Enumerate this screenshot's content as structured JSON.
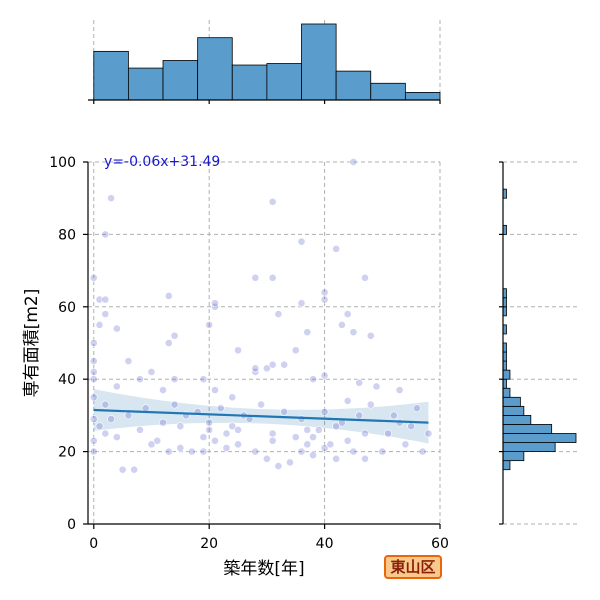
{
  "chart_data": {
    "type": "scatter",
    "xlabel": "築年数[年]",
    "ylabel": "専有面積[m2]",
    "xlim": [
      -1,
      60
    ],
    "ylim": [
      0,
      100
    ],
    "xticks": [
      0,
      20,
      40,
      60
    ],
    "yticks": [
      0,
      20,
      40,
      60,
      80,
      100
    ],
    "regression": {
      "label": "y=-0.06x+31.49",
      "slope": -0.06,
      "intercept": 31.49,
      "color": "#1f77b4"
    },
    "grid": true,
    "point_color": "#6a6fd0",
    "bar_color": "#5a9ccc",
    "x_hist": {
      "bins": [
        0,
        6,
        12,
        18,
        24,
        30,
        36,
        42,
        48,
        54,
        60
      ],
      "counts": [
        32,
        21,
        26,
        41,
        23,
        24,
        50,
        19,
        11,
        5
      ]
    },
    "y_hist": {
      "bins": [
        0,
        2.5,
        5,
        7.5,
        10,
        12.5,
        15,
        17.5,
        20,
        22.5,
        25,
        27.5,
        30,
        32.5,
        35,
        37.5,
        40,
        42.5,
        45,
        47.5,
        50,
        52.5,
        55,
        57.5,
        60,
        62.5,
        65,
        67.5,
        70,
        72.5,
        75,
        77.5,
        80,
        82.5,
        85,
        87.5,
        90,
        92.5,
        95,
        97.5,
        100
      ],
      "counts": [
        0,
        0,
        0,
        0,
        0,
        0,
        2,
        6,
        15,
        21,
        14,
        8,
        6,
        5,
        2,
        1,
        2,
        1,
        1,
        1,
        0,
        1,
        0,
        1,
        1,
        1,
        0,
        0,
        0,
        0,
        0,
        0,
        1,
        0,
        0,
        0,
        1,
        0,
        0,
        0
      ]
    },
    "points": [
      [
        5,
        15
      ],
      [
        7,
        15
      ],
      [
        11,
        23
      ],
      [
        13,
        20
      ],
      [
        15,
        21
      ],
      [
        17,
        20
      ],
      [
        19,
        20
      ],
      [
        21,
        23
      ],
      [
        23,
        25
      ],
      [
        25,
        22
      ],
      [
        28,
        20
      ],
      [
        30,
        18
      ],
      [
        32,
        16
      ],
      [
        34,
        17
      ],
      [
        36,
        20
      ],
      [
        37,
        22
      ],
      [
        38,
        19
      ],
      [
        40,
        21
      ],
      [
        42,
        18
      ],
      [
        45,
        20
      ],
      [
        47,
        18
      ],
      [
        50,
        20
      ],
      [
        54,
        22
      ],
      [
        57,
        20
      ],
      [
        8,
        26
      ],
      [
        12,
        28
      ],
      [
        16,
        30
      ],
      [
        20,
        26
      ],
      [
        24,
        27
      ],
      [
        27,
        29
      ],
      [
        31,
        25
      ],
      [
        35,
        24
      ],
      [
        39,
        26
      ],
      [
        43,
        28
      ],
      [
        46,
        30
      ],
      [
        51,
        25
      ],
      [
        55,
        27
      ],
      [
        3,
        29
      ],
      [
        6,
        30
      ],
      [
        9,
        32
      ],
      [
        14,
        33
      ],
      [
        18,
        31
      ],
      [
        22,
        32
      ],
      [
        26,
        30
      ],
      [
        29,
        33
      ],
      [
        33,
        31
      ],
      [
        36,
        29
      ],
      [
        40,
        31
      ],
      [
        44,
        34
      ],
      [
        48,
        33
      ],
      [
        52,
        30
      ],
      [
        56,
        32
      ],
      [
        2,
        25
      ],
      [
        4,
        24
      ],
      [
        10,
        22
      ],
      [
        19,
        24
      ],
      [
        23,
        21
      ],
      [
        31,
        23
      ],
      [
        38,
        24
      ],
      [
        41,
        22
      ],
      [
        44,
        23
      ],
      [
        47,
        25
      ],
      [
        2,
        33
      ],
      [
        0,
        29
      ],
      [
        0,
        20
      ],
      [
        0,
        23
      ],
      [
        1,
        27
      ],
      [
        15,
        27
      ],
      [
        20,
        28
      ],
      [
        25,
        26
      ],
      [
        37,
        26
      ],
      [
        42,
        27
      ],
      [
        53,
        28
      ],
      [
        58,
        25
      ],
      [
        4,
        38
      ],
      [
        8,
        40
      ],
      [
        10,
        42
      ],
      [
        12,
        37
      ],
      [
        14,
        40
      ],
      [
        19,
        40
      ],
      [
        21,
        37
      ],
      [
        24,
        35
      ],
      [
        28,
        42
      ],
      [
        30,
        43
      ],
      [
        33,
        44
      ],
      [
        38,
        40
      ],
      [
        40,
        41
      ],
      [
        46,
        39
      ],
      [
        49,
        38
      ],
      [
        53,
        37
      ],
      [
        0,
        35
      ],
      [
        0,
        40
      ],
      [
        0,
        42
      ],
      [
        0,
        45
      ],
      [
        0,
        50
      ],
      [
        6,
        45
      ],
      [
        13,
        50
      ],
      [
        14,
        52
      ],
      [
        20,
        55
      ],
      [
        25,
        48
      ],
      [
        28,
        43
      ],
      [
        31,
        44
      ],
      [
        35,
        48
      ],
      [
        37,
        53
      ],
      [
        43,
        55
      ],
      [
        48,
        52
      ],
      [
        1,
        55
      ],
      [
        2,
        58
      ],
      [
        4,
        54
      ],
      [
        1,
        62
      ],
      [
        2,
        62
      ],
      [
        13,
        63
      ],
      [
        21,
        60
      ],
      [
        21,
        61
      ],
      [
        32,
        58
      ],
      [
        36,
        61
      ],
      [
        40,
        62
      ],
      [
        40,
        64
      ],
      [
        44,
        58
      ],
      [
        45,
        53
      ],
      [
        0,
        68
      ],
      [
        28,
        68
      ],
      [
        31,
        68
      ],
      [
        47,
        68
      ],
      [
        2,
        80
      ],
      [
        3,
        90
      ],
      [
        31,
        89
      ],
      [
        36,
        78
      ],
      [
        42,
        76
      ],
      [
        45,
        100
      ]
    ]
  }
}
